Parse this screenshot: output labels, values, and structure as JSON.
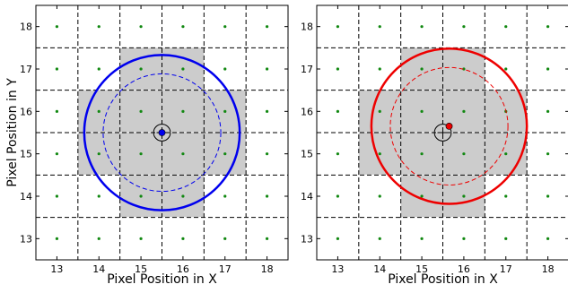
{
  "chart_data": [
    {
      "type": "scatter",
      "xlabel": "Pixel Position in X",
      "ylabel": "Pixel Position in Y",
      "xlim": [
        12.5,
        18.5
      ],
      "ylim": [
        12.5,
        18.5
      ],
      "x_ticks": [
        "13",
        "14",
        "15",
        "16",
        "17",
        "18"
      ],
      "y_ticks": [
        "13",
        "14",
        "15",
        "16",
        "17",
        "18"
      ],
      "pixel_centers": [
        13,
        14,
        15,
        16,
        17,
        18
      ],
      "pixel_boundaries": [
        13.5,
        14.5,
        15.5,
        16.5,
        17.5
      ],
      "shaded_pixels": [
        [
          15,
          17
        ],
        [
          16,
          17
        ],
        [
          14,
          16
        ],
        [
          15,
          16
        ],
        [
          16,
          16
        ],
        [
          17,
          16
        ],
        [
          14,
          15
        ],
        [
          15,
          15
        ],
        [
          16,
          15
        ],
        [
          17,
          15
        ],
        [
          15,
          14
        ],
        [
          16,
          14
        ]
      ],
      "circle_center": [
        15.5,
        15.5
      ],
      "outer_circle_radius": 1.85,
      "inner_circle_radius": 1.4,
      "small_circle": {
        "center": [
          15.5,
          15.5
        ],
        "radius": 0.2
      },
      "marker": {
        "x": 15.5,
        "y": 15.5
      },
      "color": "#0000ee"
    },
    {
      "type": "scatter",
      "xlabel": "Pixel Position in X",
      "ylabel": "",
      "xlim": [
        12.5,
        18.5
      ],
      "ylim": [
        12.5,
        18.5
      ],
      "x_ticks": [
        "13",
        "14",
        "15",
        "16",
        "17",
        "18"
      ],
      "y_ticks": [
        "13",
        "14",
        "15",
        "16",
        "17",
        "18"
      ],
      "pixel_centers": [
        13,
        14,
        15,
        16,
        17,
        18
      ],
      "pixel_boundaries": [
        13.5,
        14.5,
        15.5,
        16.5,
        17.5
      ],
      "shaded_pixels": [
        [
          15,
          17
        ],
        [
          16,
          17
        ],
        [
          14,
          16
        ],
        [
          15,
          16
        ],
        [
          16,
          16
        ],
        [
          17,
          16
        ],
        [
          14,
          15
        ],
        [
          15,
          15
        ],
        [
          16,
          15
        ],
        [
          17,
          15
        ],
        [
          15,
          14
        ],
        [
          16,
          14
        ]
      ],
      "circle_center": [
        15.65,
        15.65
      ],
      "outer_circle_radius": 1.85,
      "inner_circle_radius": 1.4,
      "small_circle": {
        "center": [
          15.5,
          15.5
        ],
        "radius": 0.2
      },
      "marker": {
        "x": 15.65,
        "y": 15.65
      },
      "color": "#ee0000"
    }
  ],
  "colors": {
    "grid_point": "#118811",
    "shaded": "#cccccc"
  }
}
